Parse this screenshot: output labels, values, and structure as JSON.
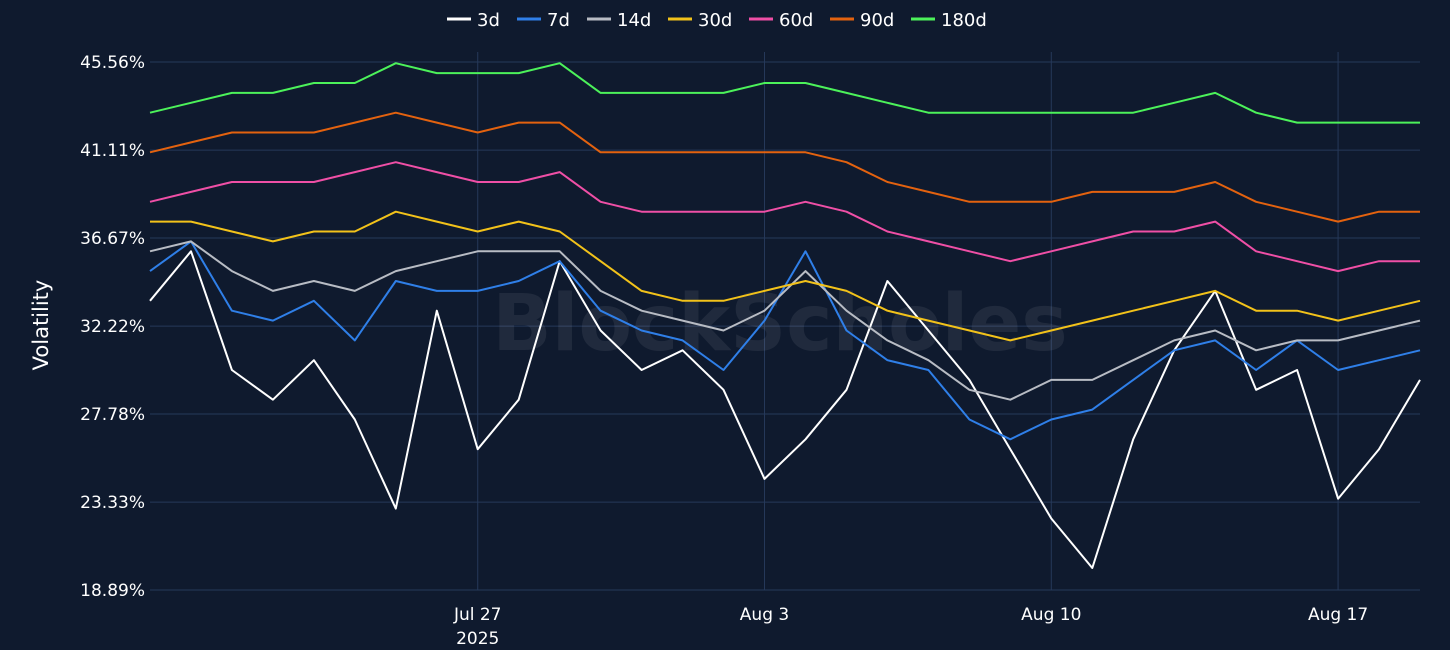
{
  "chart_data": {
    "type": "line",
    "ylabel": "Volatility",
    "watermark": "BlockScholes",
    "background_color": "#0f1a2e",
    "grid": true,
    "legend_position": "top-center",
    "x_range": [
      "2025-07-19",
      "2025-08-19"
    ],
    "ylim": [
      18.89,
      45.56
    ],
    "y_ticks": [
      "18.89%",
      "23.33%",
      "27.78%",
      "32.22%",
      "36.67%",
      "41.11%",
      "45.56%"
    ],
    "y_tick_values": [
      18.89,
      23.33,
      27.78,
      32.22,
      36.67,
      41.11,
      45.56
    ],
    "x_ticks": [
      {
        "date": "2025-07-27",
        "label": "Jul 27",
        "sublabel": "2025"
      },
      {
        "date": "2025-08-03",
        "label": "Aug 3",
        "sublabel": ""
      },
      {
        "date": "2025-08-10",
        "label": "Aug 10",
        "sublabel": ""
      },
      {
        "date": "2025-08-17",
        "label": "Aug 17",
        "sublabel": ""
      }
    ],
    "series": [
      {
        "name": "3d",
        "color": "#ffffff",
        "x": [
          "2025-07-19",
          "2025-07-20",
          "2025-07-21",
          "2025-07-22",
          "2025-07-23",
          "2025-07-24",
          "2025-07-25",
          "2025-07-26",
          "2025-07-27",
          "2025-07-28",
          "2025-07-29",
          "2025-07-30",
          "2025-07-31",
          "2025-08-01",
          "2025-08-02",
          "2025-08-03",
          "2025-08-04",
          "2025-08-05",
          "2025-08-06",
          "2025-08-07",
          "2025-08-08",
          "2025-08-09",
          "2025-08-10",
          "2025-08-11",
          "2025-08-12",
          "2025-08-13",
          "2025-08-14",
          "2025-08-15",
          "2025-08-16",
          "2025-08-17",
          "2025-08-18",
          "2025-08-19"
        ],
        "values": [
          33.5,
          36.0,
          30.0,
          28.5,
          30.5,
          27.5,
          23.0,
          33.0,
          26.0,
          28.5,
          35.5,
          32.0,
          30.0,
          31.0,
          29.0,
          24.5,
          26.5,
          29.0,
          34.5,
          32.0,
          29.5,
          26.0,
          22.5,
          20.0,
          26.5,
          31.0,
          34.0,
          29.0,
          30.0,
          23.5,
          26.0,
          29.5
        ]
      },
      {
        "name": "7d",
        "color": "#2f7fe8",
        "x": [
          "2025-07-19",
          "2025-07-20",
          "2025-07-21",
          "2025-07-22",
          "2025-07-23",
          "2025-07-24",
          "2025-07-25",
          "2025-07-26",
          "2025-07-27",
          "2025-07-28",
          "2025-07-29",
          "2025-07-30",
          "2025-07-31",
          "2025-08-01",
          "2025-08-02",
          "2025-08-03",
          "2025-08-04",
          "2025-08-05",
          "2025-08-06",
          "2025-08-07",
          "2025-08-08",
          "2025-08-09",
          "2025-08-10",
          "2025-08-11",
          "2025-08-12",
          "2025-08-13",
          "2025-08-14",
          "2025-08-15",
          "2025-08-16",
          "2025-08-17",
          "2025-08-18",
          "2025-08-19"
        ],
        "values": [
          35.0,
          36.5,
          33.0,
          32.5,
          33.5,
          31.5,
          34.5,
          34.0,
          34.0,
          34.5,
          35.5,
          33.0,
          32.0,
          31.5,
          30.0,
          32.5,
          36.0,
          32.0,
          30.5,
          30.0,
          27.5,
          26.5,
          27.5,
          28.0,
          29.5,
          31.0,
          31.5,
          30.0,
          31.5,
          30.0,
          30.5,
          31.0
        ]
      },
      {
        "name": "14d",
        "color": "#b8bcc4",
        "x": [
          "2025-07-19",
          "2025-07-20",
          "2025-07-21",
          "2025-07-22",
          "2025-07-23",
          "2025-07-24",
          "2025-07-25",
          "2025-07-26",
          "2025-07-27",
          "2025-07-28",
          "2025-07-29",
          "2025-07-30",
          "2025-07-31",
          "2025-08-01",
          "2025-08-02",
          "2025-08-03",
          "2025-08-04",
          "2025-08-05",
          "2025-08-06",
          "2025-08-07",
          "2025-08-08",
          "2025-08-09",
          "2025-08-10",
          "2025-08-11",
          "2025-08-12",
          "2025-08-13",
          "2025-08-14",
          "2025-08-15",
          "2025-08-16",
          "2025-08-17",
          "2025-08-18",
          "2025-08-19"
        ],
        "values": [
          36.0,
          36.5,
          35.0,
          34.0,
          34.5,
          34.0,
          35.0,
          35.5,
          36.0,
          36.0,
          36.0,
          34.0,
          33.0,
          32.5,
          32.0,
          33.0,
          35.0,
          33.0,
          31.5,
          30.5,
          29.0,
          28.5,
          29.5,
          29.5,
          30.5,
          31.5,
          32.0,
          31.0,
          31.5,
          31.5,
          32.0,
          32.5
        ]
      },
      {
        "name": "30d",
        "color": "#f2c21a",
        "x": [
          "2025-07-19",
          "2025-07-20",
          "2025-07-21",
          "2025-07-22",
          "2025-07-23",
          "2025-07-24",
          "2025-07-25",
          "2025-07-26",
          "2025-07-27",
          "2025-07-28",
          "2025-07-29",
          "2025-07-30",
          "2025-07-31",
          "2025-08-01",
          "2025-08-02",
          "2025-08-03",
          "2025-08-04",
          "2025-08-05",
          "2025-08-06",
          "2025-08-07",
          "2025-08-08",
          "2025-08-09",
          "2025-08-10",
          "2025-08-11",
          "2025-08-12",
          "2025-08-13",
          "2025-08-14",
          "2025-08-15",
          "2025-08-16",
          "2025-08-17",
          "2025-08-18",
          "2025-08-19"
        ],
        "values": [
          37.5,
          37.5,
          37.0,
          36.5,
          37.0,
          37.0,
          38.0,
          37.5,
          37.0,
          37.5,
          37.0,
          35.5,
          34.0,
          33.5,
          33.5,
          34.0,
          34.5,
          34.0,
          33.0,
          32.5,
          32.0,
          31.5,
          32.0,
          32.5,
          33.0,
          33.5,
          34.0,
          33.0,
          33.0,
          32.5,
          33.0,
          33.5
        ]
      },
      {
        "name": "60d",
        "color": "#ef4fa6",
        "x": [
          "2025-07-19",
          "2025-07-20",
          "2025-07-21",
          "2025-07-22",
          "2025-07-23",
          "2025-07-24",
          "2025-07-25",
          "2025-07-26",
          "2025-07-27",
          "2025-07-28",
          "2025-07-29",
          "2025-07-30",
          "2025-07-31",
          "2025-08-01",
          "2025-08-02",
          "2025-08-03",
          "2025-08-04",
          "2025-08-05",
          "2025-08-06",
          "2025-08-07",
          "2025-08-08",
          "2025-08-09",
          "2025-08-10",
          "2025-08-11",
          "2025-08-12",
          "2025-08-13",
          "2025-08-14",
          "2025-08-15",
          "2025-08-16",
          "2025-08-17",
          "2025-08-18",
          "2025-08-19"
        ],
        "values": [
          38.5,
          39.0,
          39.5,
          39.5,
          39.5,
          40.0,
          40.5,
          40.0,
          39.5,
          39.5,
          40.0,
          38.5,
          38.0,
          38.0,
          38.0,
          38.0,
          38.5,
          38.0,
          37.0,
          36.5,
          36.0,
          35.5,
          36.0,
          36.5,
          37.0,
          37.0,
          37.5,
          36.0,
          35.5,
          35.0,
          35.5,
          35.5
        ]
      },
      {
        "name": "90d",
        "color": "#e3620f",
        "x": [
          "2025-07-19",
          "2025-07-20",
          "2025-07-21",
          "2025-07-22",
          "2025-07-23",
          "2025-07-24",
          "2025-07-25",
          "2025-07-26",
          "2025-07-27",
          "2025-07-28",
          "2025-07-29",
          "2025-07-30",
          "2025-07-31",
          "2025-08-01",
          "2025-08-02",
          "2025-08-03",
          "2025-08-04",
          "2025-08-05",
          "2025-08-06",
          "2025-08-07",
          "2025-08-08",
          "2025-08-09",
          "2025-08-10",
          "2025-08-11",
          "2025-08-12",
          "2025-08-13",
          "2025-08-14",
          "2025-08-15",
          "2025-08-16",
          "2025-08-17",
          "2025-08-18",
          "2025-08-19"
        ],
        "values": [
          41.0,
          41.5,
          42.0,
          42.0,
          42.0,
          42.5,
          43.0,
          42.5,
          42.0,
          42.5,
          42.5,
          41.0,
          41.0,
          41.0,
          41.0,
          41.0,
          41.0,
          40.5,
          39.5,
          39.0,
          38.5,
          38.5,
          38.5,
          39.0,
          39.0,
          39.0,
          39.5,
          38.5,
          38.0,
          37.5,
          38.0,
          38.0
        ]
      },
      {
        "name": "180d",
        "color": "#4cf25a",
        "x": [
          "2025-07-19",
          "2025-07-20",
          "2025-07-21",
          "2025-07-22",
          "2025-07-23",
          "2025-07-24",
          "2025-07-25",
          "2025-07-26",
          "2025-07-27",
          "2025-07-28",
          "2025-07-29",
          "2025-07-30",
          "2025-07-31",
          "2025-08-01",
          "2025-08-02",
          "2025-08-03",
          "2025-08-04",
          "2025-08-05",
          "2025-08-06",
          "2025-08-07",
          "2025-08-08",
          "2025-08-09",
          "2025-08-10",
          "2025-08-11",
          "2025-08-12",
          "2025-08-13",
          "2025-08-14",
          "2025-08-15",
          "2025-08-16",
          "2025-08-17",
          "2025-08-18",
          "2025-08-19"
        ],
        "values": [
          43.0,
          43.5,
          44.0,
          44.0,
          44.5,
          44.5,
          45.5,
          45.0,
          45.0,
          45.0,
          45.5,
          44.0,
          44.0,
          44.0,
          44.0,
          44.5,
          44.5,
          44.0,
          43.5,
          43.0,
          43.0,
          43.0,
          43.0,
          43.0,
          43.0,
          43.5,
          44.0,
          43.0,
          42.5,
          42.5,
          42.5,
          42.5
        ]
      }
    ]
  }
}
